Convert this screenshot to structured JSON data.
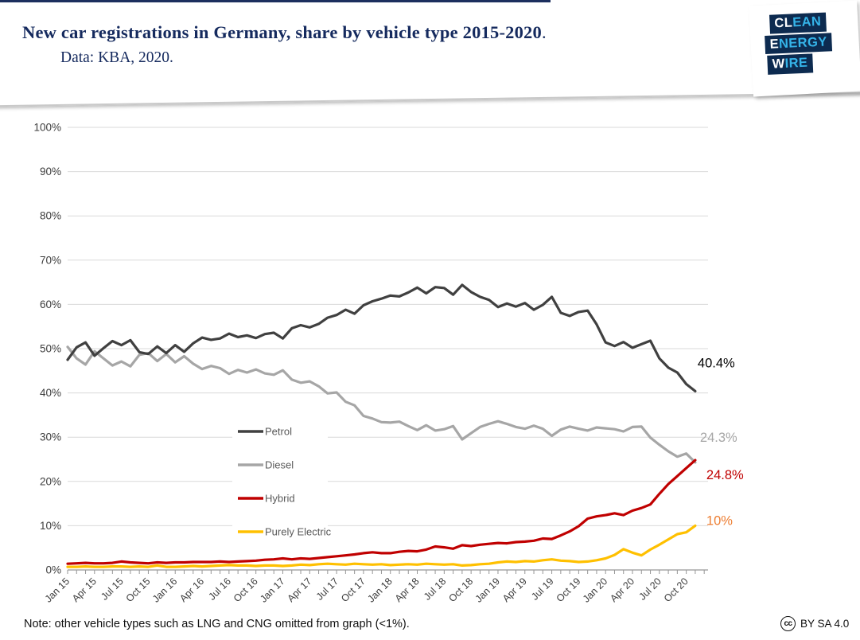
{
  "header": {
    "title": "New car registrations in Germany, share by vehicle type 2015-2020",
    "title_period": ".",
    "subtitle": "Data: KBA, 2020.",
    "logo_rows": [
      {
        "white": "CL",
        "cyan": "EAN"
      },
      {
        "white": "E",
        "cyan": "NERGY"
      },
      {
        "white": "W",
        "cyan": "IRE"
      }
    ]
  },
  "footer": {
    "note": "Note: other vehicle types such as LNG and CNG omitted from graph (<1%).",
    "cc_glyph": "cc",
    "license": "BY SA 4.0"
  },
  "chart_data": {
    "type": "line",
    "title": "New car registrations in Germany, share by vehicle type 2015-2020",
    "x_range_monthly": "Jan 2015 - Nov 2020",
    "x_tick_labels": [
      "Jan 15",
      "Apr 15",
      "Jul 15",
      "Oct 15",
      "Jan 16",
      "Apr 16",
      "Jul 16",
      "Oct 16",
      "Jan 17",
      "Apr 17",
      "Jul 17",
      "Oct 17",
      "Jan 18",
      "Apr 18",
      "Jul 18",
      "Oct 18",
      "Jan 19",
      "Apr 19",
      "Jul 19",
      "Oct 19",
      "Jan 20",
      "Apr 20",
      "Jul 20",
      "Oct 20"
    ],
    "x_label_every_n_months": 3,
    "y_tick_labels": [
      "0%",
      "10%",
      "20%",
      "30%",
      "40%",
      "50%",
      "60%",
      "70%",
      "80%",
      "90%",
      "100%"
    ],
    "ylim": [
      0,
      100
    ],
    "grid": true,
    "legend_position": "inside-left-middle",
    "axis_color": "#969696",
    "grid_color": "#d9d9d9",
    "series": [
      {
        "name": "Petrol",
        "color": "#404040",
        "end_label": "40.4%",
        "end_label_color": "#000000",
        "values": [
          47.5,
          50.3,
          51.4,
          48.4,
          50.1,
          51.7,
          50.8,
          51.9,
          49.2,
          48.8,
          50.5,
          49.0,
          50.8,
          49.3,
          51.2,
          52.5,
          52.0,
          52.3,
          53.4,
          52.6,
          53.0,
          52.4,
          53.3,
          53.6,
          52.3,
          54.6,
          55.3,
          54.8,
          55.6,
          57.0,
          57.6,
          58.8,
          57.9,
          59.8,
          60.7,
          61.3,
          62.0,
          61.8,
          62.7,
          63.8,
          62.5,
          63.9,
          63.7,
          62.2,
          64.4,
          62.8,
          61.7,
          61.0,
          59.4,
          60.2,
          59.5,
          60.3,
          58.8,
          59.9,
          61.7,
          58.1,
          57.4,
          58.3,
          58.6,
          55.5,
          51.4,
          50.6,
          51.5,
          50.2,
          51.0,
          51.8,
          47.8,
          45.7,
          44.6,
          42.0,
          40.4
        ]
      },
      {
        "name": "Diesel",
        "color": "#a6a6a6",
        "end_label": "24.3%",
        "end_label_color": "#a6a6a6",
        "values": [
          50.4,
          47.8,
          46.4,
          49.4,
          47.8,
          46.2,
          47.1,
          46.0,
          48.6,
          49.0,
          47.2,
          48.8,
          46.9,
          48.3,
          46.6,
          45.4,
          46.1,
          45.6,
          44.3,
          45.2,
          44.6,
          45.3,
          44.4,
          44.1,
          45.1,
          43.0,
          42.3,
          42.6,
          41.5,
          39.9,
          40.1,
          38.0,
          37.2,
          34.8,
          34.2,
          33.4,
          33.3,
          33.5,
          32.5,
          31.6,
          32.7,
          31.5,
          31.8,
          32.5,
          29.5,
          30.9,
          32.3,
          33.0,
          33.6,
          33.0,
          32.3,
          31.9,
          32.6,
          31.9,
          30.3,
          31.7,
          32.4,
          31.9,
          31.5,
          32.2,
          32.0,
          31.8,
          31.3,
          32.3,
          32.4,
          29.9,
          28.3,
          26.8,
          25.6,
          26.3,
          24.3
        ]
      },
      {
        "name": "Hybrid",
        "color": "#c00000",
        "end_label": "24.8%",
        "end_label_color": "#c00000",
        "values": [
          1.4,
          1.5,
          1.6,
          1.5,
          1.5,
          1.6,
          1.9,
          1.7,
          1.6,
          1.5,
          1.7,
          1.6,
          1.7,
          1.7,
          1.8,
          1.8,
          1.8,
          1.9,
          1.8,
          1.9,
          2.0,
          2.1,
          2.3,
          2.4,
          2.6,
          2.4,
          2.6,
          2.5,
          2.7,
          2.9,
          3.1,
          3.3,
          3.5,
          3.8,
          4.0,
          3.8,
          3.8,
          4.1,
          4.3,
          4.2,
          4.6,
          5.3,
          5.1,
          4.8,
          5.6,
          5.4,
          5.7,
          5.9,
          6.1,
          6.0,
          6.3,
          6.4,
          6.6,
          7.1,
          7.0,
          7.8,
          8.7,
          9.9,
          11.6,
          12.1,
          12.4,
          12.8,
          12.4,
          13.4,
          14.0,
          14.8,
          17.2,
          19.4,
          21.2,
          23.0,
          24.8
        ]
      },
      {
        "name": "Purely Electric",
        "color": "#ffc000",
        "end_label": "10%",
        "end_label_color": "#ed7d31",
        "values": [
          0.7,
          0.7,
          0.8,
          0.7,
          0.7,
          0.8,
          0.8,
          0.7,
          0.8,
          0.7,
          1.0,
          0.7,
          0.7,
          0.8,
          0.9,
          0.8,
          0.9,
          1.0,
          1.1,
          1.0,
          1.0,
          0.9,
          1.0,
          1.0,
          0.9,
          1.0,
          1.2,
          1.1,
          1.3,
          1.4,
          1.3,
          1.2,
          1.4,
          1.3,
          1.2,
          1.3,
          1.1,
          1.2,
          1.3,
          1.2,
          1.4,
          1.3,
          1.2,
          1.3,
          1.0,
          1.1,
          1.3,
          1.4,
          1.7,
          1.9,
          1.8,
          2.0,
          1.9,
          2.2,
          2.4,
          2.1,
          2.0,
          1.8,
          1.9,
          2.2,
          2.6,
          3.4,
          4.7,
          3.9,
          3.3,
          4.6,
          5.7,
          6.9,
          8.1,
          8.5,
          10.0
        ]
      }
    ]
  }
}
